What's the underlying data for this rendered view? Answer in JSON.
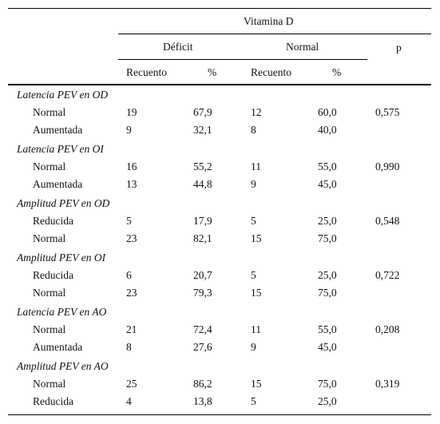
{
  "header": {
    "group": "Vitamina D",
    "deficit": "Déficit",
    "normal": "Normal",
    "p": "p",
    "count": "Recuento",
    "pct": "%"
  },
  "sections": [
    {
      "title": "Latencia PEV en OD",
      "p": "0,575",
      "rows": [
        {
          "label": "Normal",
          "d_n": "19",
          "d_pct": "67,9",
          "n_n": "12",
          "n_pct": "60,0"
        },
        {
          "label": "Aumentada",
          "d_n": "9",
          "d_pct": "32,1",
          "n_n": "8",
          "n_pct": "40,0"
        }
      ]
    },
    {
      "title": "Latencia PEV en OI",
      "p": "0,990",
      "rows": [
        {
          "label": "Normal",
          "d_n": "16",
          "d_pct": "55,2",
          "n_n": "11",
          "n_pct": "55,0"
        },
        {
          "label": "Aumentada",
          "d_n": "13",
          "d_pct": "44,8",
          "n_n": "9",
          "n_pct": "45,0"
        }
      ]
    },
    {
      "title": "Amplitud PEV en OD",
      "p": "0,548",
      "rows": [
        {
          "label": "Reducida",
          "d_n": "5",
          "d_pct": "17,9",
          "n_n": "5",
          "n_pct": "25,0"
        },
        {
          "label": "Normal",
          "d_n": "23",
          "d_pct": "82,1",
          "n_n": "15",
          "n_pct": "75,0"
        }
      ]
    },
    {
      "title": "Amplitud PEV en OI",
      "p": "0,722",
      "rows": [
        {
          "label": "Reducida",
          "d_n": "6",
          "d_pct": "20,7",
          "n_n": "5",
          "n_pct": "25,0"
        },
        {
          "label": "Normal",
          "d_n": "23",
          "d_pct": "79,3",
          "n_n": "15",
          "n_pct": "75,0"
        }
      ]
    },
    {
      "title": "Latencia PEV en AO",
      "p": "0,208",
      "rows": [
        {
          "label": "Normal",
          "d_n": "21",
          "d_pct": "72,4",
          "n_n": "11",
          "n_pct": "55,0"
        },
        {
          "label": "Aumentada",
          "d_n": "8",
          "d_pct": "27,6",
          "n_n": "9",
          "n_pct": "45,0"
        }
      ]
    },
    {
      "title": "Amplitud PEV en AO",
      "p": "0,319",
      "rows": [
        {
          "label": "Normal",
          "d_n": "25",
          "d_pct": "86,2",
          "n_n": "15",
          "n_pct": "75,0"
        },
        {
          "label": "Reducida",
          "d_n": "4",
          "d_pct": "13,8",
          "n_n": "5",
          "n_pct": "25,0"
        }
      ]
    }
  ]
}
